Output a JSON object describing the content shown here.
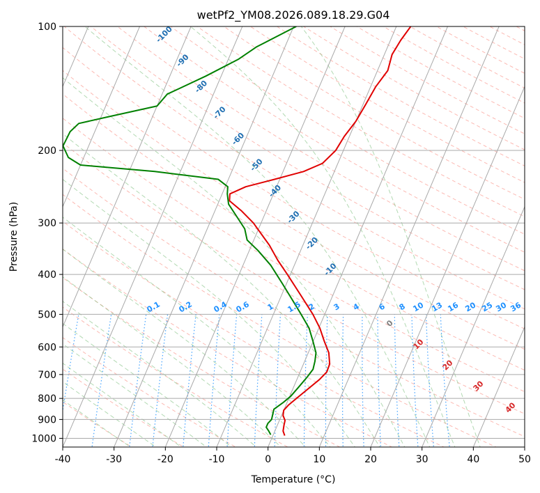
{
  "chart_data": {
    "type": "line",
    "title": "wetPf2_YM08.2026.089.18.29.G04",
    "xlabel": "Temperature (°C)",
    "ylabel": "Pressure (hPa)",
    "xlim": [
      -40,
      50
    ],
    "ylim": [
      1050,
      100
    ],
    "y_scale": "log",
    "grid": true,
    "x_ticks": [
      -40,
      -30,
      -20,
      -10,
      0,
      10,
      20,
      30,
      40,
      50
    ],
    "y_ticks": [
      1000,
      900,
      800,
      700,
      600,
      500,
      400,
      300,
      200,
      100
    ],
    "skew": true,
    "series": [
      {
        "color": "#e00000",
        "points": [
          {
            "p": 985,
            "t": 2.3
          },
          {
            "p": 960,
            "t": 1.6
          },
          {
            "p": 930,
            "t": 1.3
          },
          {
            "p": 905,
            "t": 1.1
          },
          {
            "p": 880,
            "t": 0.3
          },
          {
            "p": 855,
            "t": 0.0
          },
          {
            "p": 830,
            "t": 0.5
          },
          {
            "p": 800,
            "t": 1.5
          },
          {
            "p": 760,
            "t": 2.9
          },
          {
            "p": 720,
            "t": 4.4
          },
          {
            "p": 690,
            "t": 5.2
          },
          {
            "p": 660,
            "t": 5.1
          },
          {
            "p": 620,
            "t": 4.0
          },
          {
            "p": 580,
            "t": 2.1
          },
          {
            "p": 540,
            "t": 0.2
          },
          {
            "p": 500,
            "t": -2.3
          },
          {
            "p": 450,
            "t": -6.2
          },
          {
            "p": 400,
            "t": -10.6
          },
          {
            "p": 370,
            "t": -13.6
          },
          {
            "p": 340,
            "t": -16.5
          },
          {
            "p": 300,
            "t": -21.5
          },
          {
            "p": 280,
            "t": -24.9
          },
          {
            "p": 265,
            "t": -28.0
          },
          {
            "p": 255,
            "t": -28.5
          },
          {
            "p": 245,
            "t": -26.0
          },
          {
            "p": 235,
            "t": -21.0
          },
          {
            "p": 225,
            "t": -16.0
          },
          {
            "p": 215,
            "t": -13.0
          },
          {
            "p": 200,
            "t": -11.5
          },
          {
            "p": 185,
            "t": -11.0
          },
          {
            "p": 170,
            "t": -10.0
          },
          {
            "p": 155,
            "t": -9.5
          },
          {
            "p": 140,
            "t": -9.0
          },
          {
            "p": 128,
            "t": -8.0
          },
          {
            "p": 117,
            "t": -8.5
          },
          {
            "p": 108,
            "t": -8.0
          },
          {
            "p": 100,
            "t": -7.2
          }
        ]
      },
      {
        "color": "#008000",
        "points": [
          {
            "p": 980,
            "t": -0.5
          },
          {
            "p": 960,
            "t": -1.2
          },
          {
            "p": 940,
            "t": -2.0
          },
          {
            "p": 920,
            "t": -2.0
          },
          {
            "p": 900,
            "t": -1.6
          },
          {
            "p": 875,
            "t": -1.8
          },
          {
            "p": 850,
            "t": -2.0
          },
          {
            "p": 820,
            "t": -0.8
          },
          {
            "p": 790,
            "t": 0.2
          },
          {
            "p": 750,
            "t": 1.0
          },
          {
            "p": 710,
            "t": 1.8
          },
          {
            "p": 680,
            "t": 2.3
          },
          {
            "p": 650,
            "t": 2.0
          },
          {
            "p": 620,
            "t": 1.5
          },
          {
            "p": 580,
            "t": -0.1
          },
          {
            "p": 540,
            "t": -1.9
          },
          {
            "p": 500,
            "t": -4.6
          },
          {
            "p": 460,
            "t": -7.6
          },
          {
            "p": 420,
            "t": -10.9
          },
          {
            "p": 380,
            "t": -14.6
          },
          {
            "p": 350,
            "t": -18.3
          },
          {
            "p": 330,
            "t": -21.3
          },
          {
            "p": 310,
            "t": -22.7
          },
          {
            "p": 290,
            "t": -25.2
          },
          {
            "p": 270,
            "t": -27.9
          },
          {
            "p": 255,
            "t": -29.0
          },
          {
            "p": 245,
            "t": -29.5
          },
          {
            "p": 235,
            "t": -32.0
          },
          {
            "p": 225,
            "t": -45.0
          },
          {
            "p": 217,
            "t": -60.0
          },
          {
            "p": 208,
            "t": -63.0
          },
          {
            "p": 195,
            "t": -65.0
          },
          {
            "p": 180,
            "t": -64.8
          },
          {
            "p": 172,
            "t": -63.8
          },
          {
            "p": 165,
            "t": -58.0
          },
          {
            "p": 156,
            "t": -50.0
          },
          {
            "p": 146,
            "t": -49.0
          },
          {
            "p": 132,
            "t": -43.0
          },
          {
            "p": 120,
            "t": -38.0
          },
          {
            "p": 112,
            "t": -35.5
          },
          {
            "p": 100,
            "t": -29.5
          }
        ]
      }
    ],
    "reference_lines": {
      "dry_adiabats": {
        "color": "#fa8072",
        "style": "dashed"
      },
      "moist_adiabats": {
        "color": "#7fbf7f",
        "style": "dashed",
        "labels": [
          "-100",
          "-90",
          "-80",
          "-70",
          "-60",
          "-50",
          "-40",
          "-30",
          "-20",
          "-10",
          "0"
        ]
      },
      "mixing_ratio": {
        "color": "#1e90ff",
        "style": "dotted",
        "labels": [
          "0.1",
          "0.2",
          "0.4",
          "0.6",
          "1",
          "1.5",
          "2",
          "3",
          "4",
          "6",
          "8",
          "10",
          "13",
          "16",
          "20",
          "25",
          "30",
          "36"
        ]
      },
      "isotherm_labels": {
        "color": "#d62728",
        "labels": [
          "10",
          "20",
          "30",
          "40"
        ]
      }
    }
  }
}
